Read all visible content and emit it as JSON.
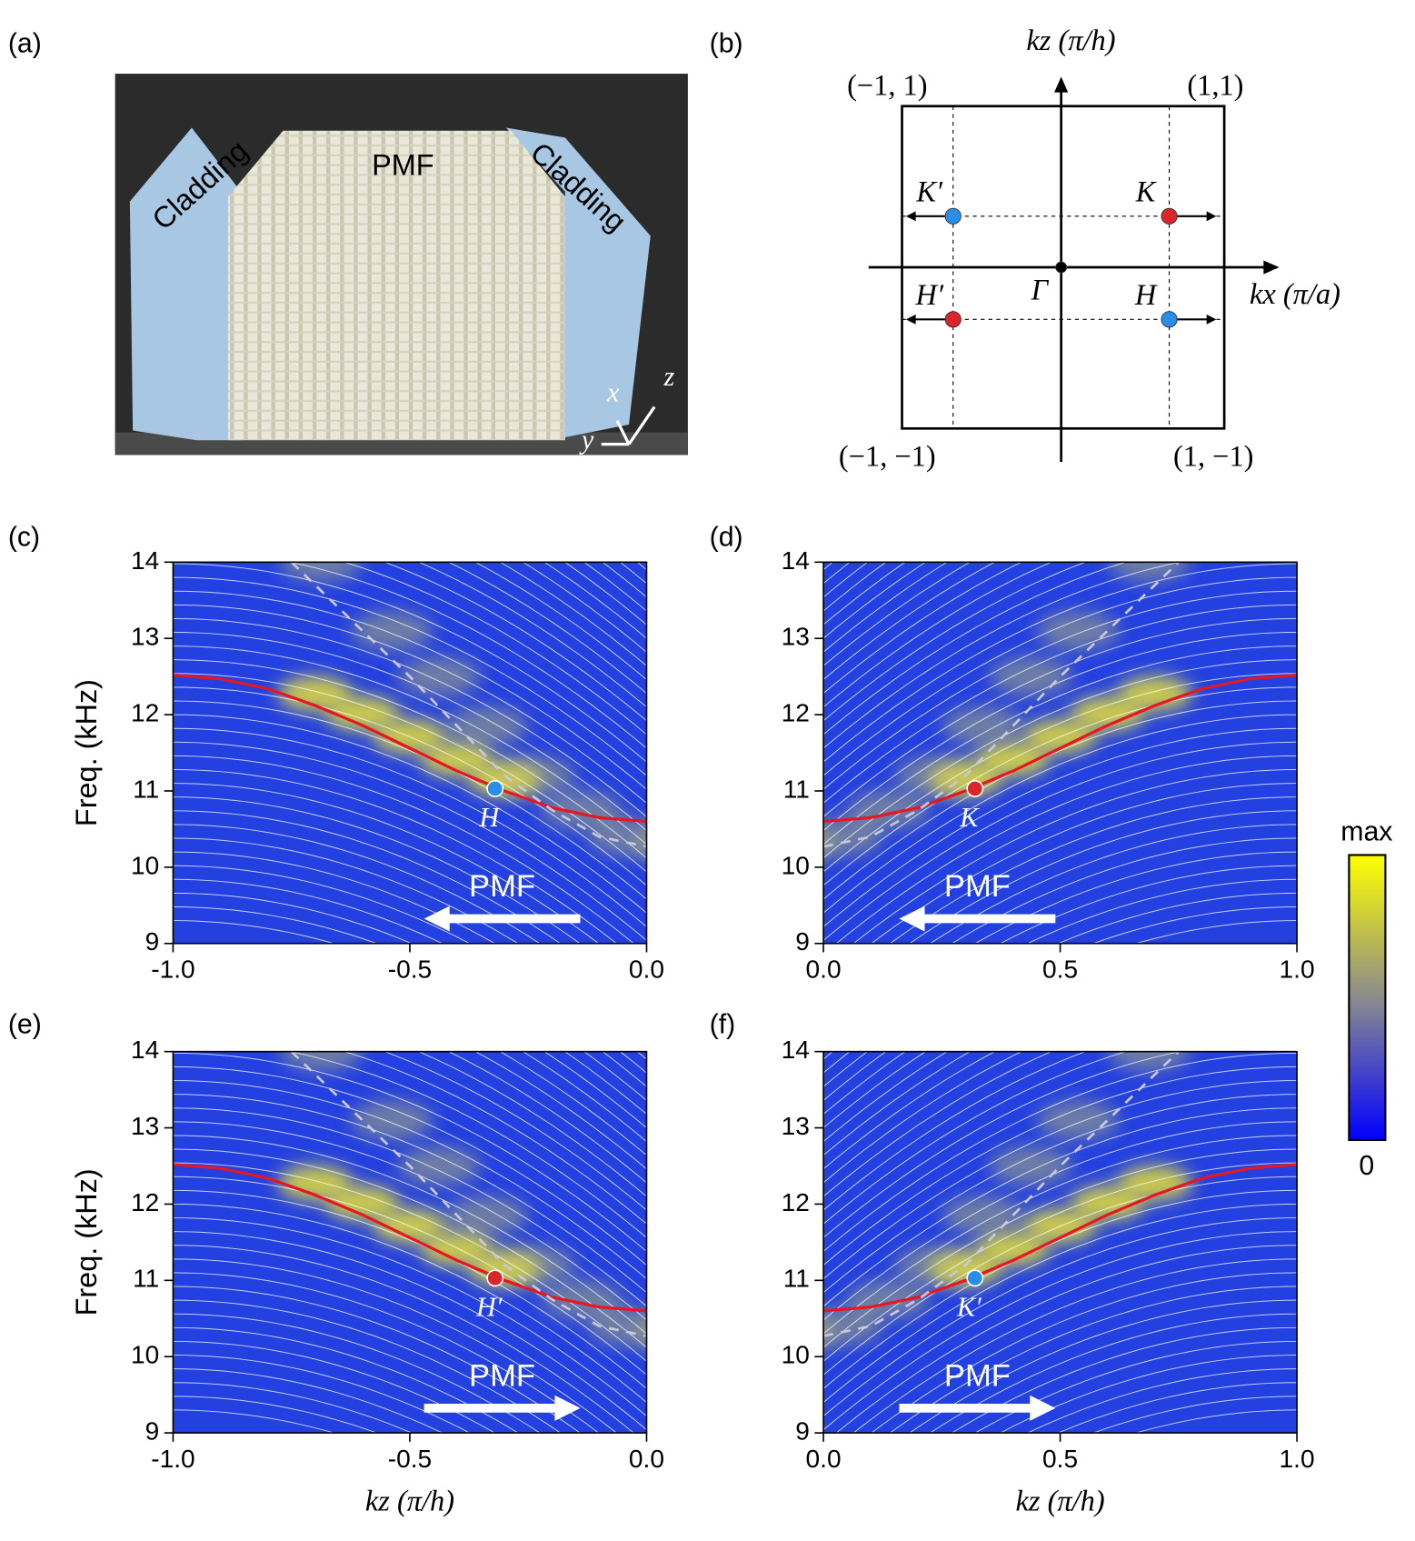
{
  "photo": {
    "label": "(a)",
    "texts": [
      "Cladding",
      "PMF",
      "Cladding"
    ],
    "axes": [
      "x",
      "z",
      "y"
    ]
  },
  "bz": {
    "label": "(b)",
    "x_axis": "kx (π/a)",
    "y_axis": "kz (π/h)",
    "corners": [
      "(−1, 1)",
      "(1,1)",
      "(−1, −1)",
      "(1, −1)"
    ],
    "points": [
      {
        "label": "K′",
        "color": "#2a8de8"
      },
      {
        "label": "K",
        "color": "#d8262a"
      },
      {
        "label": "H′",
        "color": "#d8262a"
      },
      {
        "label": "Γ",
        "color": "#000000"
      },
      {
        "label": "H",
        "color": "#2a8de8"
      }
    ]
  },
  "colorbar": {
    "top": "max",
    "bottom": "0"
  },
  "chart_data": [
    {
      "type": "line",
      "label": "(c)",
      "ylabel": "Freq. (kHz)",
      "xlim": [
        -1,
        0
      ],
      "ylim": [
        9,
        14
      ],
      "xticks": [
        {
          "value": -1,
          "label": "-1.0"
        },
        -0.5,
        {
          "value": 0,
          "label": "0.0"
        }
      ],
      "yticks": [
        9,
        10,
        11,
        12,
        13,
        14
      ],
      "series": [
        {
          "color": "#e8171f",
          "x": [
            -1,
            -0.9,
            -0.8,
            -0.7,
            -0.6,
            -0.5,
            -0.4,
            -0.3,
            -0.2,
            -0.1,
            0
          ],
          "values": [
            12.52,
            12.47,
            12.34,
            12.12,
            11.86,
            11.56,
            11.26,
            11.0,
            10.78,
            10.65,
            10.6
          ]
        },
        {
          "color": "#c8c8d8",
          "x": [
            -0.75,
            -0.6,
            -0.5,
            -0.4,
            -0.3,
            -0.2,
            -0.1,
            0
          ],
          "values": [
            14,
            13.1,
            12.5,
            11.85,
            11.2,
            10.75,
            10.4,
            10.27
          ]
        }
      ],
      "point": {
        "x": -0.32,
        "y": 11.03,
        "label": "H",
        "color": "#2a8de8"
      },
      "arrow": {
        "label": "PMF",
        "direction": "left"
      }
    },
    {
      "type": "line",
      "label": "(d)",
      "xlim": [
        0,
        1
      ],
      "ylim": [
        9,
        14
      ],
      "xticks": [
        {
          "value": 0,
          "label": "0.0"
        },
        0.5,
        {
          "value": 1,
          "label": "1.0"
        }
      ],
      "yticks": [
        9,
        10,
        11,
        12,
        13,
        14
      ],
      "series": [
        {
          "color": "#e8171f",
          "x": [
            0,
            0.1,
            0.2,
            0.3,
            0.4,
            0.5,
            0.6,
            0.7,
            0.8,
            0.9,
            1
          ],
          "values": [
            10.6,
            10.65,
            10.78,
            11.0,
            11.26,
            11.56,
            11.86,
            12.12,
            12.34,
            12.47,
            12.52
          ]
        },
        {
          "color": "#c8c8d8",
          "x": [
            0,
            0.1,
            0.2,
            0.3,
            0.4,
            0.5,
            0.6,
            0.75
          ],
          "values": [
            10.27,
            10.4,
            10.75,
            11.2,
            11.85,
            12.5,
            13.1,
            14
          ]
        }
      ],
      "point": {
        "x": 0.32,
        "y": 11.03,
        "label": "K",
        "color": "#d8262a"
      },
      "arrow": {
        "label": "PMF",
        "direction": "left"
      }
    },
    {
      "type": "line",
      "label": "(e)",
      "ylabel": "Freq. (kHz)",
      "xlabel": "kz (π/h)",
      "xlim": [
        -1,
        0
      ],
      "ylim": [
        9,
        14
      ],
      "xticks": [
        {
          "value": -1,
          "label": "-1.0"
        },
        -0.5,
        {
          "value": 0,
          "label": "0.0"
        }
      ],
      "yticks": [
        9,
        10,
        11,
        12,
        13,
        14
      ],
      "series": [
        {
          "color": "#e8171f",
          "x": [
            -1,
            -0.9,
            -0.8,
            -0.7,
            -0.6,
            -0.5,
            -0.4,
            -0.3,
            -0.2,
            -0.1,
            0
          ],
          "values": [
            12.52,
            12.47,
            12.34,
            12.12,
            11.86,
            11.56,
            11.26,
            11.0,
            10.78,
            10.65,
            10.6
          ]
        },
        {
          "color": "#c8c8d8",
          "x": [
            -0.75,
            -0.6,
            -0.5,
            -0.4,
            -0.3,
            -0.2,
            -0.1,
            0
          ],
          "values": [
            14,
            13.1,
            12.5,
            11.85,
            11.2,
            10.75,
            10.4,
            10.27
          ]
        }
      ],
      "point": {
        "x": -0.32,
        "y": 11.03,
        "label": "H′",
        "color": "#d8262a"
      },
      "arrow": {
        "label": "PMF",
        "direction": "right"
      }
    },
    {
      "type": "line",
      "label": "(f)",
      "xlabel": "kz (π/h)",
      "xlim": [
        0,
        1
      ],
      "ylim": [
        9,
        14
      ],
      "xticks": [
        {
          "value": 0,
          "label": "0.0"
        },
        0.5,
        {
          "value": 1,
          "label": "1.0"
        }
      ],
      "yticks": [
        9,
        10,
        11,
        12,
        13,
        14
      ],
      "series": [
        {
          "color": "#e8171f",
          "x": [
            0,
            0.1,
            0.2,
            0.3,
            0.4,
            0.5,
            0.6,
            0.7,
            0.8,
            0.9,
            1
          ],
          "values": [
            10.6,
            10.65,
            10.78,
            11.0,
            11.26,
            11.56,
            11.86,
            12.12,
            12.34,
            12.47,
            12.52
          ]
        },
        {
          "color": "#c8c8d8",
          "x": [
            0,
            0.1,
            0.2,
            0.3,
            0.4,
            0.5,
            0.6,
            0.75
          ],
          "values": [
            10.27,
            10.4,
            10.75,
            11.2,
            11.85,
            12.5,
            13.1,
            14
          ]
        }
      ],
      "point": {
        "x": 0.32,
        "y": 11.03,
        "label": "K′",
        "color": "#2a8de8"
      },
      "arrow": {
        "label": "PMF",
        "direction": "right"
      }
    }
  ]
}
